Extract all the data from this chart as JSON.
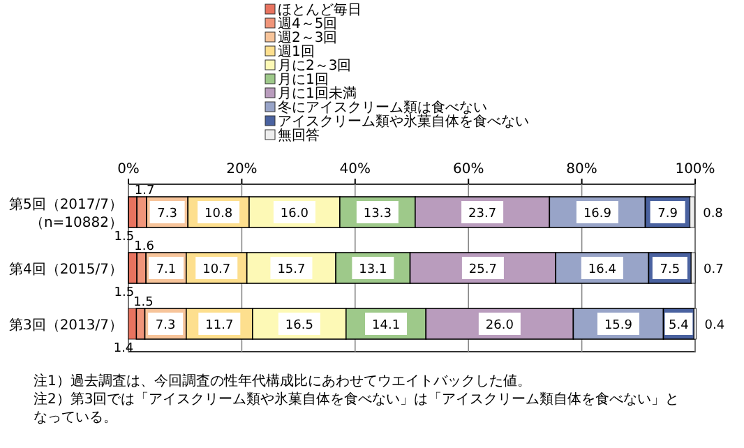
{
  "chart_data": {
    "type": "bar",
    "orientation": "horizontal",
    "stacked": true,
    "categories": [
      "第5回（2017/7）（n=10882）",
      "第4回（2015/7）",
      "第3回（2013/7）"
    ],
    "series": [
      {
        "name": "ほとんど毎日",
        "color": "#e8735f",
        "values": [
          1.5,
          1.5,
          1.4
        ],
        "value_labels": [
          "1.5",
          "1.5",
          "1.4"
        ]
      },
      {
        "name": "週4～5回",
        "color": "#f0957a",
        "values": [
          1.7,
          1.6,
          1.5
        ],
        "value_labels": [
          "1.7",
          "1.6",
          "1.5"
        ]
      },
      {
        "name": "週2～3回",
        "color": "#f7c49a",
        "values": [
          7.3,
          7.1,
          7.3
        ],
        "value_labels": [
          "7.3",
          "7.1",
          "7.3"
        ]
      },
      {
        "name": "週1回",
        "color": "#fddf8e",
        "values": [
          10.8,
          10.7,
          11.7
        ],
        "value_labels": [
          "10.8",
          "10.7",
          "11.7"
        ]
      },
      {
        "name": "月に2～3回",
        "color": "#fdf9b6",
        "values": [
          16.0,
          15.7,
          16.5
        ],
        "value_labels": [
          "16.0",
          "15.7",
          "16.5"
        ]
      },
      {
        "name": "月に1回",
        "color": "#9ec98a",
        "values": [
          13.3,
          13.1,
          14.1
        ],
        "value_labels": [
          "13.3",
          "13.1",
          "14.1"
        ]
      },
      {
        "name": "月に1回未満",
        "color": "#b99cbd",
        "values": [
          23.7,
          25.7,
          26.0
        ],
        "value_labels": [
          "23.7",
          "25.7",
          "26.0"
        ]
      },
      {
        "name": "冬にアイスクリーム類は食べない",
        "color": "#98a4c8",
        "values": [
          16.9,
          16.4,
          15.9
        ],
        "value_labels": [
          "16.9",
          "16.4",
          "15.9"
        ]
      },
      {
        "name": "アイスクリーム類や氷菓自体を食べない",
        "color": "#4a62a0",
        "values": [
          7.9,
          7.5,
          5.4
        ],
        "value_labels": [
          "7.9",
          "7.5",
          "5.4"
        ]
      },
      {
        "name": "無回答",
        "color": "#eeeeee",
        "values": [
          0.8,
          0.7,
          0.4
        ],
        "value_labels": [
          "0.8",
          "0.7",
          "0.4"
        ]
      }
    ],
    "xlim": [
      0,
      100
    ],
    "xticks": [
      {
        "value": 0,
        "label": "0%"
      },
      {
        "value": 20,
        "label": "20%"
      },
      {
        "value": 40,
        "label": "40%"
      },
      {
        "value": 60,
        "label": "60%"
      },
      {
        "value": 80,
        "label": "80%"
      },
      {
        "value": 100,
        "label": "100%"
      }
    ],
    "grid": "x",
    "legend": "top",
    "annotations": [
      "注1）過去調査は、今回調査の性年代構成比にあわせてウエイトバックした値。",
      "注2）第3回では「アイスクリーム類や氷菓自体を食べない」は「アイスクリーム類自体を食べない」となっている。"
    ]
  }
}
